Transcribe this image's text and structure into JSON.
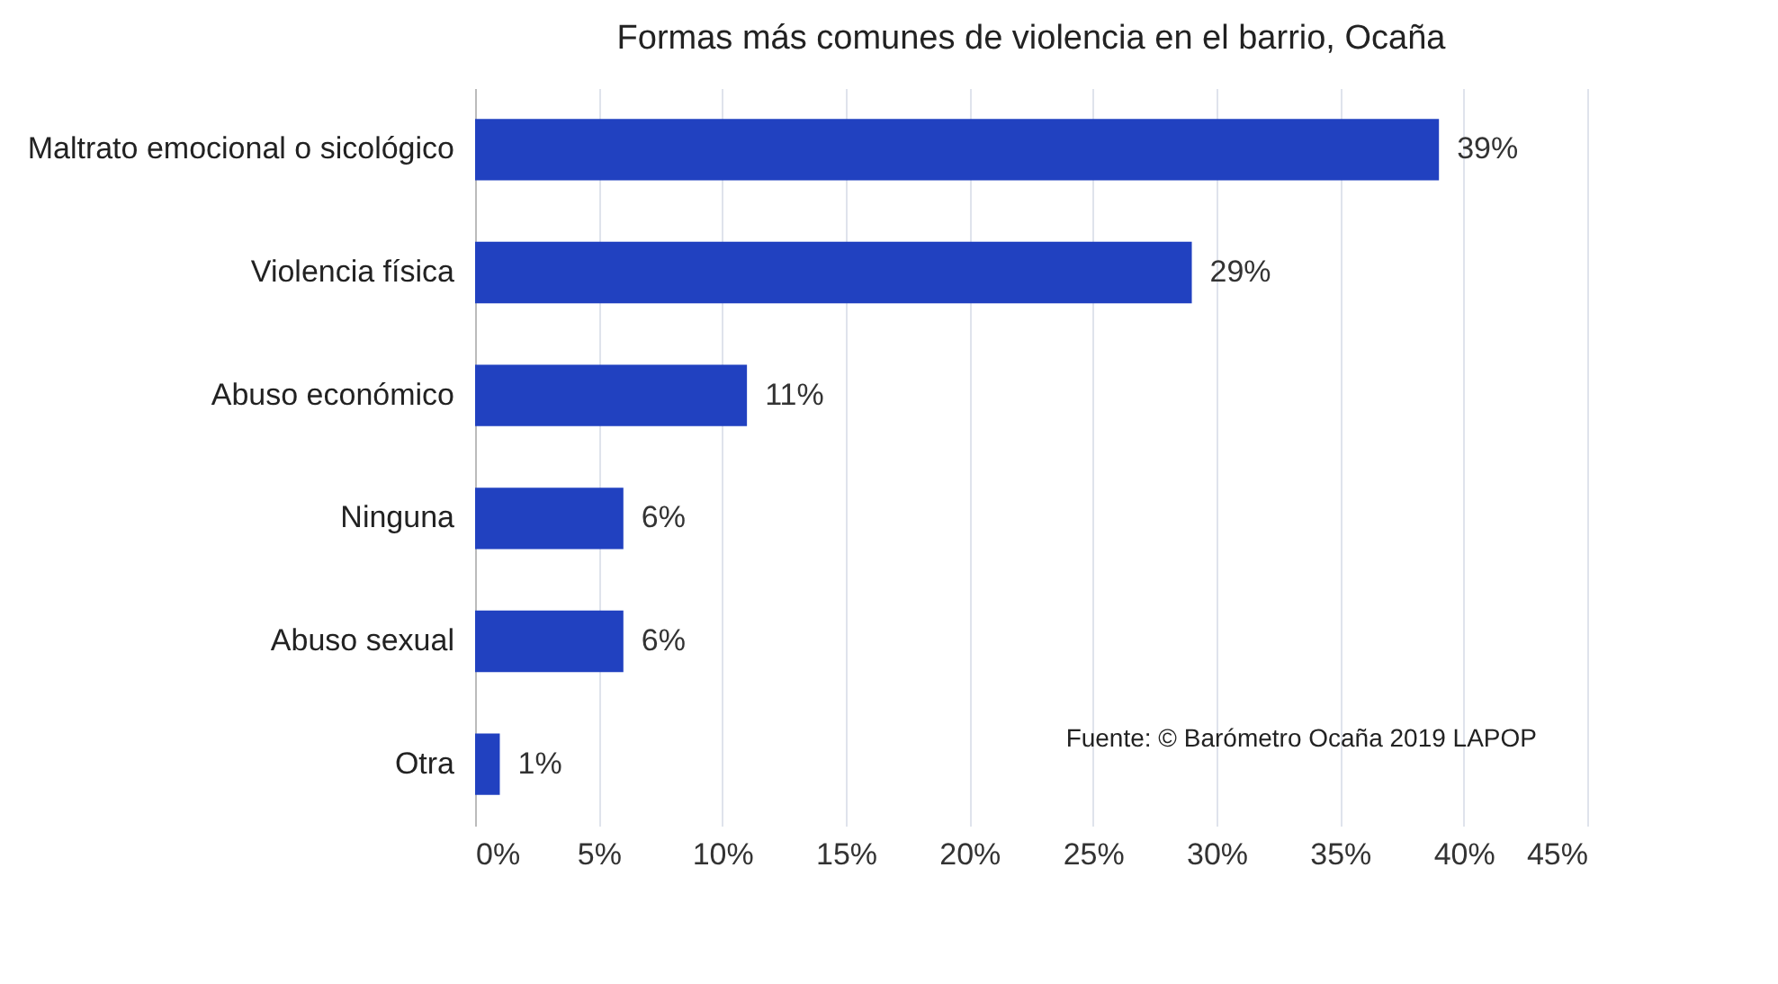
{
  "chart_data": {
    "type": "bar",
    "orientation": "horizontal",
    "title": "Formas más comunes de violencia en el barrio, Ocaña",
    "categories": [
      "Maltrato emocional o sicológico",
      "Violencia física",
      "Abuso económico",
      "Ninguna",
      "Abuso sexual",
      "Otra"
    ],
    "values": [
      39,
      29,
      11,
      6,
      6,
      1
    ],
    "value_labels": [
      "39%",
      "29%",
      "11%",
      "6%",
      "6%",
      "1%"
    ],
    "color": "#2141c0",
    "xlim": [
      0,
      45
    ],
    "xticks": [
      {
        "value": 0,
        "label": "0%"
      },
      {
        "value": 5,
        "label": "5%"
      },
      {
        "value": 10,
        "label": "10%"
      },
      {
        "value": 15,
        "label": "15%"
      },
      {
        "value": 20,
        "label": "20%"
      },
      {
        "value": 25,
        "label": "25%"
      },
      {
        "value": 30,
        "label": "30%"
      },
      {
        "value": 35,
        "label": "35%"
      },
      {
        "value": 40,
        "label": "40%"
      },
      {
        "value": 45,
        "label": "45%"
      }
    ],
    "grid": "x",
    "annotations": [
      "Fuente: © Barómetro Ocaña 2019 LAPOP"
    ]
  }
}
